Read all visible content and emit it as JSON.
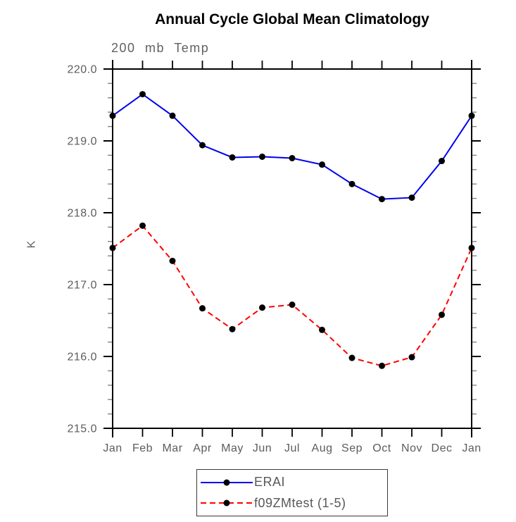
{
  "chart_data": {
    "type": "line",
    "title": "Annual Cycle Global Mean Climatology",
    "subtitle": "200 mb Temp",
    "ylabel": "K",
    "x_tick_labels": [
      "Jan",
      "Feb",
      "Mar",
      "Apr",
      "May",
      "Jun",
      "Jul",
      "Aug",
      "Sep",
      "Oct",
      "Nov",
      "Dec",
      "Jan"
    ],
    "y_tick_labels": [
      "220.0",
      "219.0",
      "218.0",
      "217.0",
      "216.0",
      "215.0"
    ],
    "ylim": [
      215.0,
      220.0
    ],
    "y_major_step": 1.0,
    "y_minor_step": 0.2,
    "grid": false,
    "legend_position": "bottom-center",
    "series": [
      {
        "name": "ERAI",
        "color": "#0000ee",
        "style": "solid",
        "marker": "filled-circle",
        "marker_color": "#000000",
        "values": [
          219.35,
          219.65,
          219.35,
          218.94,
          218.77,
          218.78,
          218.76,
          218.67,
          218.4,
          218.19,
          218.21,
          218.72,
          219.35
        ]
      },
      {
        "name": "f09ZMtest (1-5)",
        "color": "#ff0000",
        "style": "dashed",
        "marker": "filled-circle",
        "marker_color": "#000000",
        "values": [
          217.51,
          217.82,
          217.33,
          216.67,
          216.38,
          216.68,
          216.72,
          216.37,
          215.98,
          215.87,
          215.99,
          216.58,
          217.51
        ]
      }
    ]
  },
  "colors": {
    "axis_text": "#5c5c5c",
    "axis_line": "#000000",
    "minor_tick": "#848484",
    "title_text": "#000000"
  }
}
